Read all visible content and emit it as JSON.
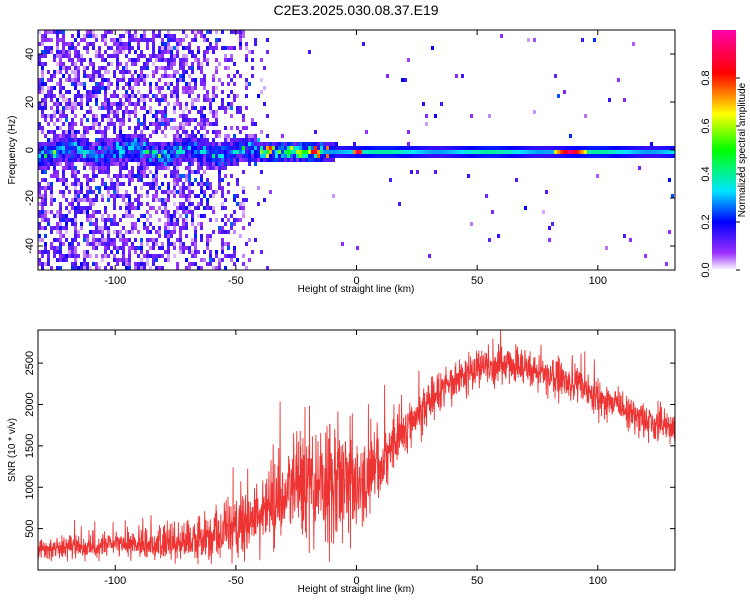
{
  "figure": {
    "title": "C2E3.2025.030.08.37.E19"
  },
  "chart_data": [
    {
      "type": "heatmap",
      "xlabel": "Height of straight line (km)",
      "ylabel": "Frequency (Hz)",
      "xlim": [
        -132,
        132
      ],
      "ylim": [
        -50,
        50
      ],
      "xticks": [
        -100,
        -50,
        0,
        50,
        100
      ],
      "yticks": [
        -40,
        -20,
        0,
        20,
        40
      ],
      "colorbar": {
        "label": "Normalized spectral amplitude",
        "range": [
          0,
          1
        ],
        "ticks": [
          0.0,
          0.2,
          0.4,
          0.6,
          0.8
        ]
      },
      "signal_band": {
        "center_freq_hz": 0,
        "peaks": [
          {
            "x_km": -18,
            "amplitude": 0.95
          },
          {
            "x_km": 0,
            "amplitude": 0.95
          },
          {
            "x_km": 88,
            "amplitude": 0.95
          }
        ]
      },
      "noise_region_x_km": [
        -132,
        -50
      ],
      "colormap": [
        "#ffffff",
        "#8a00ff",
        "#0000ff",
        "#00e6ff",
        "#00ff00",
        "#ffff00",
        "#ff0000",
        "#ff00aa"
      ]
    },
    {
      "type": "line",
      "xlabel": "Height of straight line (km)",
      "ylabel": "SNR (10 * v/v)",
      "xlim": [
        -132,
        132
      ],
      "ylim": [
        0,
        2900
      ],
      "xticks": [
        -100,
        -50,
        0,
        50,
        100
      ],
      "yticks": [
        500,
        1000,
        1500,
        2000,
        2500
      ],
      "color": "#ee3333",
      "envelope": {
        "x": [
          -132,
          -120,
          -100,
          -80,
          -60,
          -50,
          -40,
          -30,
          -20,
          -10,
          0,
          10,
          20,
          30,
          40,
          50,
          60,
          70,
          80,
          90,
          100,
          110,
          120,
          132
        ],
        "mean": [
          250,
          270,
          300,
          320,
          380,
          520,
          650,
          900,
          1000,
          1050,
          950,
          1300,
          1700,
          2050,
          2300,
          2450,
          2480,
          2450,
          2350,
          2250,
          2100,
          1950,
          1800,
          1700
        ],
        "spread": [
          150,
          150,
          180,
          220,
          300,
          400,
          500,
          600,
          800,
          900,
          600,
          450,
          350,
          300,
          250,
          250,
          250,
          250,
          250,
          250,
          250,
          250,
          250,
          250
        ]
      }
    }
  ]
}
